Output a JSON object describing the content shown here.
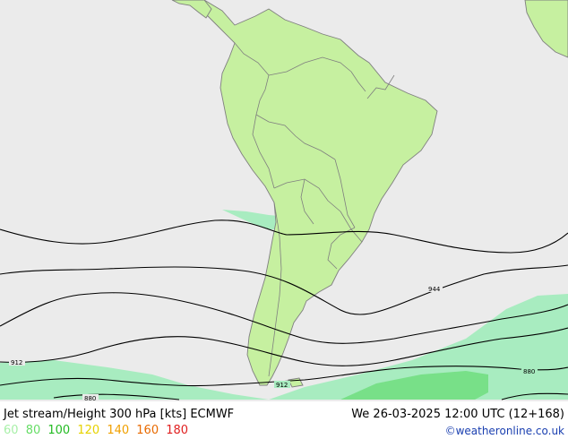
{
  "title": "Jet stream/Height 300 hPa [kts] ECMWF",
  "datetime": "We 26-03-2025 12:00 UTC (12+168)",
  "credit": "©weatheronline.co.uk",
  "legend": [
    {
      "label": "60",
      "color": "#a8f0a8"
    },
    {
      "label": "80",
      "color": "#66dd66"
    },
    {
      "label": "100",
      "color": "#22bb22"
    },
    {
      "label": "120",
      "color": "#e6d200"
    },
    {
      "label": "140",
      "color": "#f0a000"
    },
    {
      "label": "160",
      "color": "#e86a00"
    },
    {
      "label": "180",
      "color": "#e02020"
    }
  ],
  "contour_labels": [
    "944",
    "912",
    "912",
    "880",
    "880"
  ],
  "colors": {
    "ocean": "#ebebeb",
    "land": "#c6f0a0",
    "jet_60": "#a8ecc0",
    "jet_80": "#78e088"
  }
}
